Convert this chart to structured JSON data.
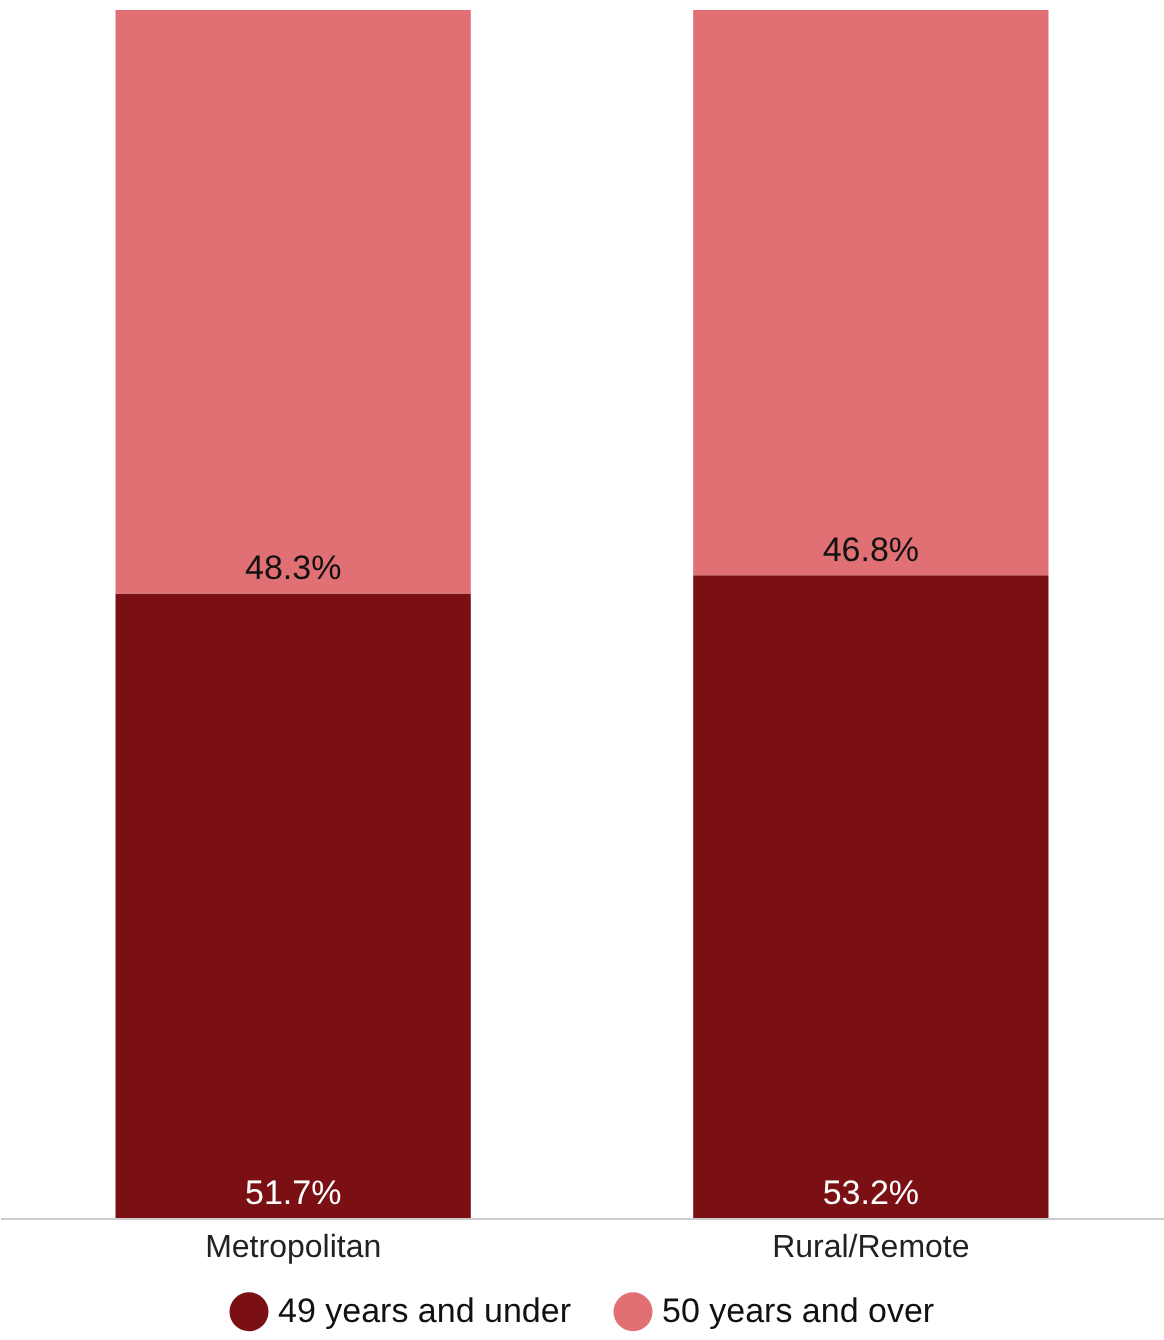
{
  "chart_data": {
    "type": "bar",
    "stacked": true,
    "tick_labels": "x",
    "categories": [
      "Metropolitan",
      "Rural/Remote"
    ],
    "series": [
      {
        "name": "49 years and under",
        "color": "#7a1014",
        "values": [
          51.7,
          53.2
        ],
        "value_labels": [
          "51.7%",
          "53.2%"
        ]
      },
      {
        "name": "50 years and over",
        "color": "#e07073",
        "values": [
          48.3,
          46.8
        ],
        "value_labels": [
          "48.3%",
          "46.8%"
        ]
      }
    ],
    "legend": "bottom"
  }
}
